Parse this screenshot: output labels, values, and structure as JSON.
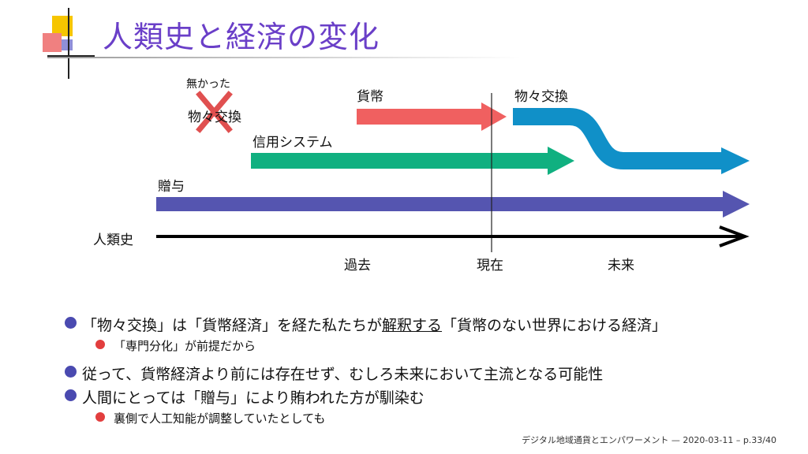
{
  "slide": {
    "title": "人類史と経済の変化"
  },
  "diagram": {
    "labels": {
      "did_not_exist": "無かった",
      "barter_crossed": "物々交換",
      "currency": "貨幣",
      "barter_future": "物々交換",
      "credit_system": "信用システム",
      "gift": "贈与",
      "human_history": "人類史",
      "past": "過去",
      "present": "現在",
      "future": "未来"
    },
    "colors": {
      "currency": "#f06060",
      "barter_future": "#1090c8",
      "credit_system": "#10b080",
      "gift": "#5555b0",
      "cross": "#e05050",
      "axis": "#000000"
    }
  },
  "bullets": [
    {
      "text_before": "「物々交換」は「貨幣経済」を経た私たちが",
      "text_underlined": "解釈する",
      "text_after": "「貨幣のない世界における経済」",
      "sub": [
        "「専門分化」が前提だから"
      ]
    },
    {
      "text": "従って、貨幣経済より前には存在せず、むしろ未来において主流となる可能性",
      "sub": []
    },
    {
      "text": "人間にとっては「贈与」により賄われた方が馴染む",
      "sub": [
        "裏側で人工知能が調整していたとしても"
      ]
    }
  ],
  "footer": {
    "text": "デジタル地域通貨とエンパワーメント — 2020-03-11 – p.33/40"
  }
}
